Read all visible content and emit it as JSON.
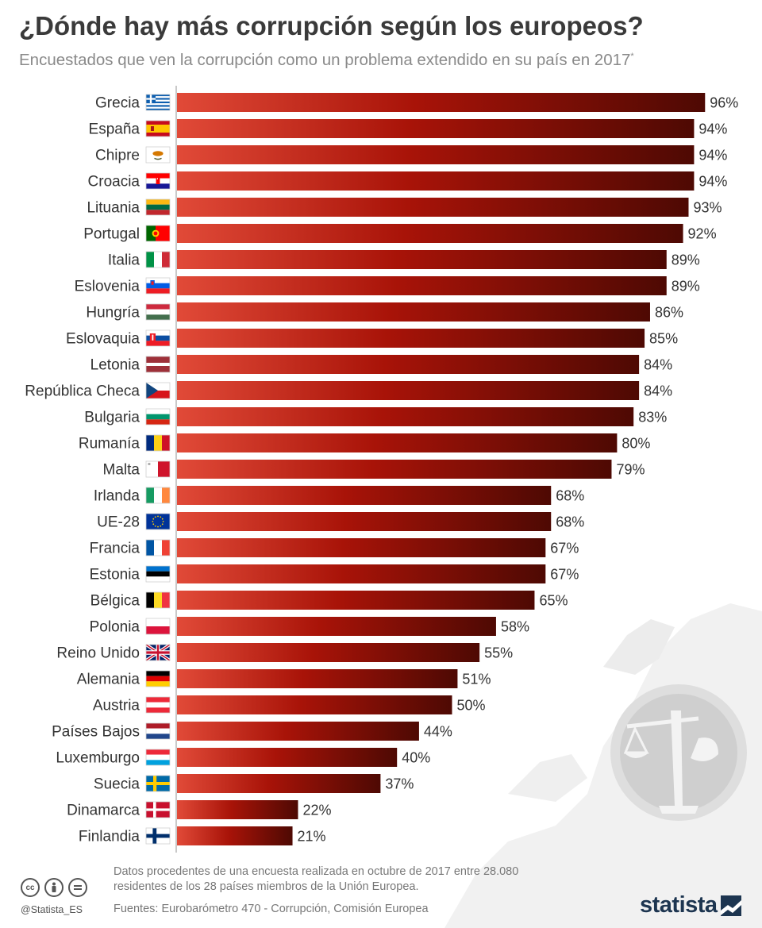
{
  "header": {
    "title": "¿Dónde hay más corrupción según los europeos?",
    "subtitle": "Encuestados que ven la corrupción como un problema extendido en su país en 2017",
    "subtitle_mark": "*"
  },
  "colors": {
    "bar_start": "#e14a38",
    "bar_mid": "#a81308",
    "bar_end": "#4e0903",
    "axis_line": "#c9c9c9"
  },
  "chart_data": {
    "type": "bar",
    "orientation": "horizontal",
    "title": "¿Dónde hay más corrupción según los europeos?",
    "value_suffix": "%",
    "xlim": [
      0,
      100
    ],
    "grid": false,
    "categories": [
      "Grecia",
      "España",
      "Chipre",
      "Croacia",
      "Lituania",
      "Portugal",
      "Italia",
      "Eslovenia",
      "Hungría",
      "Eslovaquia",
      "Letonia",
      "República Checa",
      "Bulgaria",
      "Rumanía",
      "Malta",
      "Irlanda",
      "UE-28",
      "Francia",
      "Estonia",
      "Bélgica",
      "Polonia",
      "Reino Unido",
      "Alemania",
      "Austria",
      "Países Bajos",
      "Luxemburgo",
      "Suecia",
      "Dinamarca",
      "Finlandia"
    ],
    "values": [
      96,
      94,
      94,
      94,
      93,
      92,
      89,
      89,
      86,
      85,
      84,
      84,
      83,
      80,
      79,
      68,
      68,
      67,
      67,
      65,
      58,
      55,
      51,
      50,
      44,
      40,
      37,
      22,
      21
    ],
    "flag_icons": [
      "flag-gr-icon",
      "flag-es-icon",
      "flag-cy-icon",
      "flag-hr-icon",
      "flag-lt-icon",
      "flag-pt-icon",
      "flag-it-icon",
      "flag-si-icon",
      "flag-hu-icon",
      "flag-sk-icon",
      "flag-lv-icon",
      "flag-cz-icon",
      "flag-bg-icon",
      "flag-ro-icon",
      "flag-mt-icon",
      "flag-ie-icon",
      "flag-eu-icon",
      "flag-fr-icon",
      "flag-ee-icon",
      "flag-be-icon",
      "flag-pl-icon",
      "flag-gb-icon",
      "flag-de-icon",
      "flag-at-icon",
      "flag-nl-icon",
      "flag-lu-icon",
      "flag-se-icon",
      "flag-dk-icon",
      "flag-fi-icon"
    ]
  },
  "footer": {
    "note": "Datos procedentes de una encuesta realizada en octubre de 2017 entre 28.080 residentes de los 28 países miembros de la Unión Europea.",
    "sources": "Fuentes: Eurobarómetro 470 - Corrupción, Comisión Europea",
    "handle": "@Statista_ES",
    "brand": "statista",
    "license_icons": [
      "cc-icon",
      "by-icon",
      "nd-icon"
    ]
  }
}
